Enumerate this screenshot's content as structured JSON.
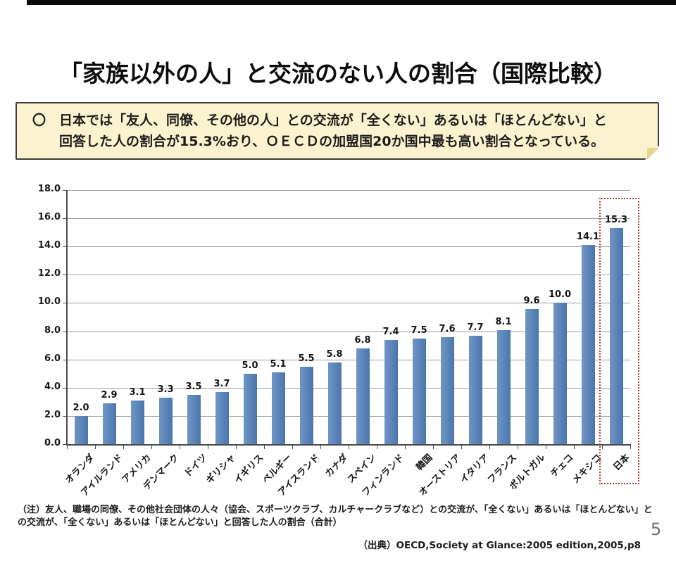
{
  "title": "「家族以外の人」と交流のない人の割合（国際比較）",
  "note_box": {
    "line1": "〇　日本では「友人、同僚、その他の人」との交流が「全くない」あるいは「ほとんどない」と",
    "line2": "回答した人の割合が15.3%おり、ＯＥＣＤの加盟国20か国中最も高い割合となっている。"
  },
  "footnote": {
    "line1": "（注）友人、職場の同僚、その他社会団体の人々（協会、スポーツクラブ、カルチャークラブなど）との交流が、「全くない」あるいは「ほとんどない」と",
    "line2": "の交流が、「全くない」あるいは「ほとんどない」と回答した人の割合（合計）"
  },
  "source": "（出典）OECD,Society at Glance:2005 edition,2005,p8",
  "page_number": "5",
  "chart_data": {
    "type": "bar",
    "title": "",
    "xlabel": "",
    "ylabel": "",
    "categories": [
      "オランダ",
      "アイルランド",
      "アメリカ",
      "デンマーク",
      "ドイツ",
      "ギリシャ",
      "イギリス",
      "ベルギー",
      "アイスランド",
      "カナダ",
      "スペイン",
      "フィンランド",
      "韓国",
      "オーストリア",
      "イタリア",
      "フランス",
      "ポルトガル",
      "チェコ",
      "メキシコ",
      "日本"
    ],
    "values": [
      2.0,
      2.9,
      3.1,
      3.3,
      3.5,
      3.7,
      5.0,
      5.1,
      5.5,
      5.8,
      6.8,
      7.4,
      7.5,
      7.6,
      7.7,
      8.1,
      9.6,
      10.0,
      14.1,
      15.3
    ],
    "ylim": [
      0,
      18
    ],
    "ytick_step": 2,
    "grid": true,
    "legend": false,
    "bar_color": "#4a76ae",
    "bar_color_light": "#7095c4",
    "grid_color": "#9b9b9b",
    "axis_color": "#4a4a4a",
    "highlight_category": "日本",
    "highlight_box_color": "#b03a31"
  }
}
